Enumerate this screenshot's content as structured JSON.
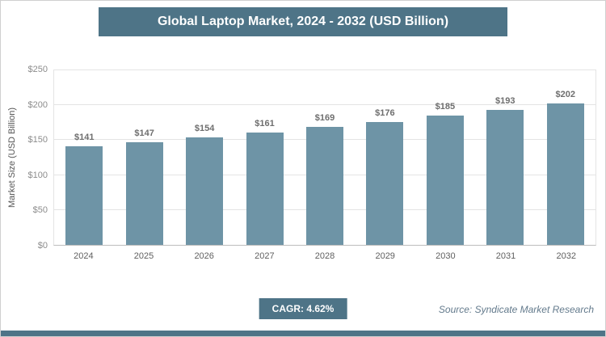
{
  "title": "Global Laptop Market, 2024 - 2032 (USD Billion)",
  "chart_data": {
    "type": "bar",
    "title": "Global Laptop Market, 2024 - 2032 (USD Billion)",
    "categories": [
      "2024",
      "2025",
      "2026",
      "2027",
      "2028",
      "2029",
      "2030",
      "2031",
      "2032"
    ],
    "values": [
      141,
      147,
      154,
      161,
      169,
      176,
      185,
      193,
      202
    ],
    "value_labels": [
      "$141",
      "$147",
      "$154",
      "$161",
      "$169",
      "$176",
      "$185",
      "$193",
      "$202"
    ],
    "ylabel": "Market Size (USD Billion)",
    "xlabel": "",
    "ylim": [
      0,
      250
    ],
    "ytick_labels": [
      "$0",
      "$50",
      "$100",
      "$150",
      "$200",
      "$250"
    ],
    "grid": true,
    "legend": false
  },
  "footer": {
    "cagr_label": "CAGR: 4.62%",
    "source": "Source: Syndicate Market Research"
  },
  "colors": {
    "accent": "#4e7487",
    "bar": "#6e94a6",
    "value_label": "#6e6e6e",
    "tick_label": "#8c8c8c",
    "source_text": "#637a8c"
  }
}
